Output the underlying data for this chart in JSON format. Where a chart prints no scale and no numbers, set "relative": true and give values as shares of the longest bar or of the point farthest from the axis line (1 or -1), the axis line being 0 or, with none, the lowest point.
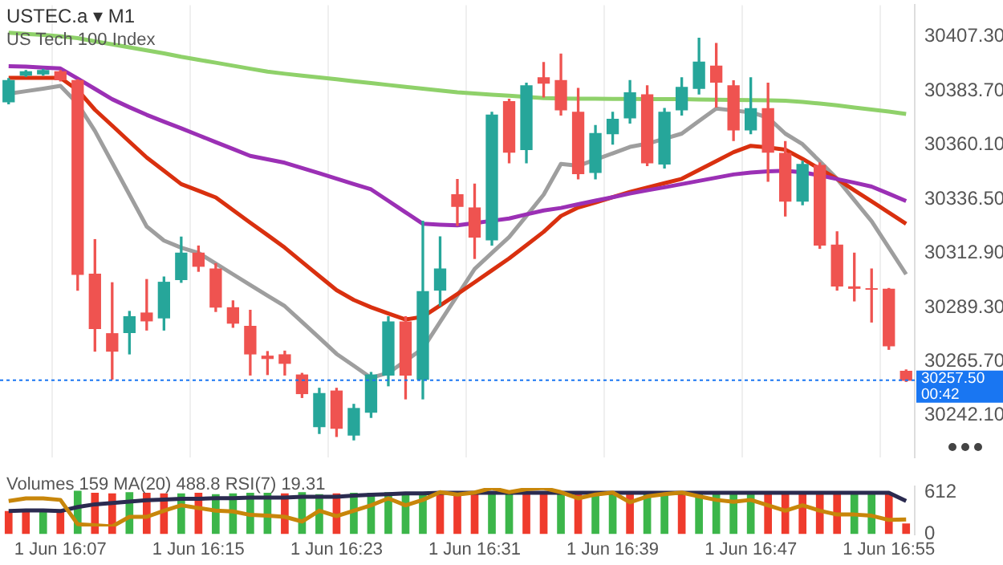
{
  "chart_data": [
    {
      "type": "candlestick",
      "title": "USTEC.a ▾ M1",
      "subtitle": "US Tech 100 Index",
      "ohlc": [
        [
          30378.9,
          30389.0,
          30378.0,
          30388.1
        ],
        [
          30390.5,
          30392.5,
          30390.0,
          30392.0
        ],
        [
          30391.0,
          30393.0,
          30390.5,
          30392.5
        ],
        [
          30392.0,
          30392.5,
          30388.0,
          30388.5
        ],
        [
          30388.1,
          30388.5,
          30296.8,
          30303.7
        ],
        [
          30303.7,
          30318.8,
          30270.2,
          30280.1
        ],
        [
          30277.8,
          30300.0,
          30258.0,
          30270.2
        ],
        [
          30278.3,
          30287.5,
          30269.0,
          30285.2
        ],
        [
          30286.8,
          30301.4,
          30279.4,
          30283.4
        ],
        [
          30284.7,
          30302.5,
          30279.4,
          30300.2
        ],
        [
          30301.4,
          30319.9,
          30300.2,
          30312.9
        ],
        [
          30312.9,
          30316.0,
          30305.0,
          30307.2
        ],
        [
          30306.0,
          30308.3,
          30287.5,
          30289.4
        ],
        [
          30289.1,
          30292.1,
          30280.6,
          30282.4
        ],
        [
          30281.0,
          30288.0,
          30259.8,
          30269.0
        ],
        [
          30268.0,
          30270.0,
          30260.0,
          30267.0
        ],
        [
          30268.6,
          30270.2,
          30259.8,
          30264.9
        ],
        [
          30259.8,
          30260.5,
          30250.0,
          30251.7
        ],
        [
          30237.3,
          30254.0,
          30234.3,
          30251.7
        ],
        [
          30252.8,
          30254.0,
          30233.0,
          30236.6
        ],
        [
          30233.6,
          30247.0,
          30231.5,
          30245.2
        ],
        [
          30243.6,
          30260.9,
          30241.3,
          30259.8
        ],
        [
          30259.8,
          30285.2,
          30255.1,
          30282.9
        ],
        [
          30282.9,
          30285.2,
          30249.4,
          30259.8
        ],
        [
          30257.9,
          30326.8,
          30249.4,
          30296.1
        ],
        [
          30296.8,
          30320.0,
          30290.0,
          30306.0
        ],
        [
          30338.4,
          30345.0,
          30325.0,
          30333.3
        ],
        [
          30332.6,
          30343.0,
          30310.6,
          30319.9
        ],
        [
          30318.7,
          30374.3,
          30316.4,
          30373.1
        ],
        [
          30378.9,
          30380.0,
          30352.3,
          30356.9
        ],
        [
          30358.1,
          30387.0,
          30352.3,
          30385.8
        ],
        [
          30389.3,
          30396.0,
          30381.0,
          30387.0
        ],
        [
          30388.1,
          30399.7,
          30373.1,
          30375.4
        ],
        [
          30374.3,
          30384.7,
          30345.3,
          30347.6
        ],
        [
          30348.1,
          30368.5,
          30345.3,
          30365.0
        ],
        [
          30365.0,
          30374.3,
          30360.4,
          30371.2
        ],
        [
          30371.9,
          30388.1,
          30369.6,
          30382.8
        ],
        [
          30381.9,
          30385.8,
          30351.1,
          30352.3
        ],
        [
          30351.8,
          30376.0,
          30350.0,
          30374.3
        ],
        [
          30375.4,
          30389.3,
          30373.1,
          30385.1
        ],
        [
          30384.7,
          30406.6,
          30382.3,
          30396.2
        ],
        [
          30394.4,
          30404.3,
          30376.6,
          30387.4
        ],
        [
          30385.8,
          30388.0,
          30362.0,
          30366.6
        ],
        [
          30366.6,
          30389.3,
          30365.0,
          30375.9
        ],
        [
          30375.9,
          30387.0,
          30344.2,
          30356.9
        ],
        [
          30356.4,
          30361.5,
          30329.1,
          30335.6
        ],
        [
          30335.6,
          30353.0,
          30334.0,
          30351.6
        ],
        [
          30351.1,
          30352.3,
          30315.0,
          30316.4
        ],
        [
          30316.4,
          30322.2,
          30296.8,
          30298.6
        ],
        [
          30298.2,
          30312.9,
          30292.1,
          30297.6
        ],
        [
          30297.4,
          30306.0,
          30282.9,
          30297.2
        ],
        [
          30297.2,
          30297.5,
          30271.0,
          30272.5
        ],
        [
          30261.4,
          30262.0,
          30257.0,
          30257.5
        ]
      ],
      "colors": [
        "#26a69a",
        "#26a69a",
        "#26a69a",
        "#ef5350",
        "#ef5350",
        "#ef5350",
        "#ef5350",
        "#26a69a",
        "#ef5350",
        "#26a69a",
        "#26a69a",
        "#ef5350",
        "#ef5350",
        "#ef5350",
        "#ef5350",
        "#ef5350",
        "#ef5350",
        "#ef5350",
        "#26a69a",
        "#ef5350",
        "#26a69a",
        "#26a69a",
        "#26a69a",
        "#ef5350",
        "#26a69a",
        "#26a69a",
        "#ef5350",
        "#ef5350",
        "#26a69a",
        "#ef5350",
        "#26a69a",
        "#ef5350",
        "#ef5350",
        "#ef5350",
        "#26a69a",
        "#26a69a",
        "#26a69a",
        "#ef5350",
        "#26a69a",
        "#26a69a",
        "#26a69a",
        "#ef5350",
        "#ef5350",
        "#26a69a",
        "#ef5350",
        "#ef5350",
        "#26a69a",
        "#ef5350",
        "#ef5350",
        "#ef5350",
        "#ef5350",
        "#ef5350",
        "#ef5350"
      ],
      "series": [
        {
          "type": "line",
          "color": "#8fd16a",
          "values": [
            30409.0,
            30408.5,
            30408.0,
            30407.4,
            30406.6,
            30405.2,
            30403.9,
            30402.6,
            30401.3,
            30400.0,
            30398.5,
            30397.2,
            30395.9,
            30394.6,
            30393.3,
            30392.0,
            30391.1,
            30390.3,
            30389.5,
            30388.7,
            30387.8,
            30387.0,
            30386.2,
            30385.4,
            30384.6,
            30383.8,
            30383.0,
            30382.5,
            30382.0,
            30381.5,
            30381.0,
            30380.5,
            30380.3,
            30380.2,
            30380.2,
            30380.1,
            30380.1,
            30380.0,
            30380.0,
            30380.0,
            30379.9,
            30379.8,
            30379.7,
            30379.6,
            30379.5,
            30379.3,
            30378.8,
            30378.1,
            30377.3,
            30376.4,
            30375.5,
            30374.6,
            30373.6
          ]
        },
        {
          "type": "line",
          "color": "#9b30b5",
          "values": [
            30394.4,
            30394.2,
            30393.8,
            30393.4,
            30389.0,
            30384.5,
            30380.0,
            30376.5,
            30373.2,
            30370.2,
            30367.3,
            30364.3,
            30361.3,
            30358.3,
            30355.3,
            30353.8,
            30352.3,
            30350.0,
            30347.7,
            30345.4,
            30343.0,
            30340.7,
            30335.7,
            30330.7,
            30325.7,
            30325.3,
            30325.0,
            30326.0,
            30327.0,
            30328.0,
            30329.8,
            30331.5,
            30332.6,
            30334.2,
            30335.8,
            30337.3,
            30338.9,
            30340.3,
            30341.6,
            30343.0,
            30344.4,
            30345.8,
            30347.2,
            30348.0,
            30348.6,
            30348.8,
            30348.1,
            30346.8,
            30345.2,
            30343.6,
            30341.9,
            30338.8,
            30335.6
          ]
        },
        {
          "type": "line",
          "color": "#d9300f",
          "values": [
            30389.3,
            30389.3,
            30389.3,
            30389.3,
            30384.0,
            30375.4,
            30368.5,
            30361.5,
            30354.6,
            30348.8,
            30343.0,
            30340.1,
            30337.2,
            30331.7,
            30326.2,
            30320.8,
            30315.3,
            30309.1,
            30302.9,
            30296.8,
            30292.5,
            30289.3,
            30286.6,
            30284.0,
            30285.2,
            30290.1,
            30295.1,
            30300.2,
            30305.4,
            30310.6,
            30316.4,
            30322.2,
            30329.1,
            30332.8,
            30335.0,
            30337.3,
            30339.6,
            30341.5,
            30343.4,
            30345.3,
            30349.2,
            30353.0,
            30356.9,
            30359.7,
            30359.0,
            30358.0,
            30354.0,
            30349.6,
            30345.3,
            30340.3,
            30335.5,
            30330.6,
            30325.7
          ]
        },
        {
          "type": "line",
          "color": "#9e9e9e",
          "values": [
            30382.4,
            30383.5,
            30384.6,
            30385.8,
            30378.0,
            30366.2,
            30352.3,
            30338.4,
            30324.5,
            30318.4,
            30315.3,
            30313.0,
            30308.4,
            30303.7,
            30299.0,
            30294.4,
            30289.8,
            30282.9,
            30276.0,
            30269.0,
            30263.8,
            30258.6,
            30260.7,
            30266.0,
            30271.3,
            30282.9,
            30294.5,
            30306.0,
            30313.0,
            30319.9,
            30329.1,
            30338.4,
            30351.8,
            30351.0,
            30353.7,
            30356.4,
            30359.2,
            30360.6,
            30362.8,
            30365.0,
            30370.5,
            30375.9,
            30375.1,
            30374.3,
            30372.0,
            30365.0,
            30360.4,
            30352.9,
            30345.3,
            30336.0,
            30326.8,
            30315.3,
            30303.7
          ]
        }
      ],
      "ylim": [
        30224.0,
        30421.0
      ],
      "yticks": [
        {
          "value": 30407.3,
          "label": "30407.30"
        },
        {
          "value": 30383.7,
          "label": "30383.70"
        },
        {
          "value": 30360.1,
          "label": "30360.10"
        },
        {
          "value": 30336.5,
          "label": "30336.50"
        },
        {
          "value": 30312.9,
          "label": "30312.90"
        },
        {
          "value": 30289.3,
          "label": "30289.30"
        },
        {
          "value": 30265.7,
          "label": "30265.70"
        },
        {
          "value": 30242.1,
          "label": "30242.10"
        }
      ],
      "ref_lines": [
        {
          "axis": "y",
          "value": 30257.5,
          "label": "30257.50",
          "color": "#1976f2",
          "line_style": "dotted"
        }
      ],
      "annotations": [
        "00:42"
      ],
      "tick_labels": "y",
      "grid": "x",
      "legend": false
    },
    {
      "type": "bar",
      "title": "Volumes 159 MA(20) 488.8 RSI(7) 19.31",
      "categories": [
        null,
        null,
        null,
        "1 Jun 16:07",
        null,
        null,
        null,
        null,
        null,
        null,
        null,
        "1 Jun 16:15",
        null,
        null,
        null,
        null,
        null,
        null,
        null,
        "1 Jun 16:23",
        null,
        null,
        null,
        null,
        null,
        null,
        null,
        "1 Jun 16:31",
        null,
        null,
        null,
        null,
        null,
        null,
        null,
        "1 Jun 16:39",
        null,
        null,
        null,
        null,
        null,
        null,
        null,
        "1 Jun 16:47",
        null,
        null,
        null,
        null,
        null,
        null,
        null,
        "1 Jun 16:55",
        null
      ],
      "series": [
        {
          "type": "bar",
          "colors": [
            "#ef3b2c",
            "#ef3b2c",
            "#3cb64a",
            "#ef3b2c",
            "#3cb64a",
            "#ef3b2c",
            "#ef3b2c",
            "#3cb64a",
            "#ef3b2c",
            "#ef3b2c",
            "#3cb64a",
            "#ef3b2c",
            "#3cb64a",
            "#3cb64a",
            "#3cb64a",
            "#3cb64a",
            "#ef3b2c",
            "#3cb64a",
            "#3cb64a",
            "#ef3b2c",
            "#3cb64a",
            "#3cb64a",
            "#3cb64a",
            "#3cb64a",
            "#3cb64a",
            "#ef3b2c",
            "#ef3b2c",
            "#ef3b2c",
            "#3cb64a",
            "#3cb64a",
            "#ef3b2c",
            "#ef3b2c",
            "#3cb64a",
            "#ef3b2c",
            "#3cb64a",
            "#3cb64a",
            "#ef3b2c",
            "#3cb64a",
            "#3cb64a",
            "#ef3b2c",
            "#3cb64a",
            "#3cb64a",
            "#3cb64a",
            "#3cb64a",
            "#ef3b2c",
            "#ef3b2c",
            "#ef3b2c",
            "#ef3b2c",
            "#ef3b2c",
            "#3cb64a",
            "#3cb64a",
            "#ef3b2c",
            "#ef3b2c"
          ],
          "values": [
            340,
            350,
            350,
            340,
            640,
            610,
            600,
            620,
            610,
            600,
            600,
            610,
            590,
            600,
            610,
            610,
            600,
            620,
            590,
            600,
            610,
            610,
            620,
            620,
            600,
            630,
            610,
            620,
            600,
            620,
            610,
            620,
            610,
            600,
            620,
            620,
            610,
            610,
            600,
            620,
            620,
            630,
            610,
            610,
            600,
            620,
            610,
            620,
            600,
            610,
            620,
            610,
            159
          ]
        },
        {
          "type": "line",
          "color": "#2b2b50",
          "values": [
            340,
            350,
            350,
            340,
            400,
            440,
            460,
            480,
            500,
            510,
            520,
            520,
            530,
            530,
            540,
            540,
            540,
            550,
            550,
            550,
            570,
            580,
            590,
            600,
            600,
            610,
            610,
            610,
            610,
            610,
            610,
            610,
            610,
            610,
            610,
            610,
            610,
            610,
            610,
            610,
            610,
            610,
            610,
            610,
            610,
            610,
            610,
            610,
            610,
            610,
            610,
            610,
            488.8
          ]
        }
      ],
      "ylim": [
        0,
        700
      ],
      "yticks": [
        0,
        612
      ],
      "grid": false,
      "legend": false
    },
    {
      "type": "line",
      "relative": true,
      "tick_labels": false,
      "legend": false,
      "grid": false,
      "categories": [
        null,
        null,
        null,
        null,
        null,
        null,
        null,
        null,
        null,
        null,
        null,
        null,
        null,
        null,
        null,
        null,
        null,
        null,
        null,
        null,
        null,
        null,
        null,
        null,
        null,
        null,
        null,
        null,
        null,
        null,
        null,
        null,
        null,
        null,
        null,
        null,
        null,
        null,
        null,
        null,
        null,
        null,
        null,
        null,
        null,
        null,
        null,
        null,
        null,
        null,
        null,
        null,
        null
      ],
      "series": [
        {
          "color": "#c8860a",
          "values": [
            0.66,
            0.73,
            0.73,
            0.69,
            0.06,
            0.03,
            0,
            0.25,
            0.25,
            0.41,
            0.55,
            0.48,
            0.41,
            0.39,
            0.3,
            0.28,
            0.25,
            0.13,
            0.41,
            0.27,
            0.41,
            0.55,
            0.73,
            0.55,
            0.69,
            0.89,
            0.83,
            0.88,
            1,
            0.89,
            0.97,
            1,
            0.89,
            0.73,
            0.83,
            0.88,
            0.63,
            0.78,
            0.84,
            0.88,
            0.78,
            0.69,
            0.64,
            0.69,
            0.55,
            0.41,
            0.55,
            0.41,
            0.31,
            0.31,
            0.28,
            0.17,
            0.18
          ]
        }
      ]
    }
  ]
}
